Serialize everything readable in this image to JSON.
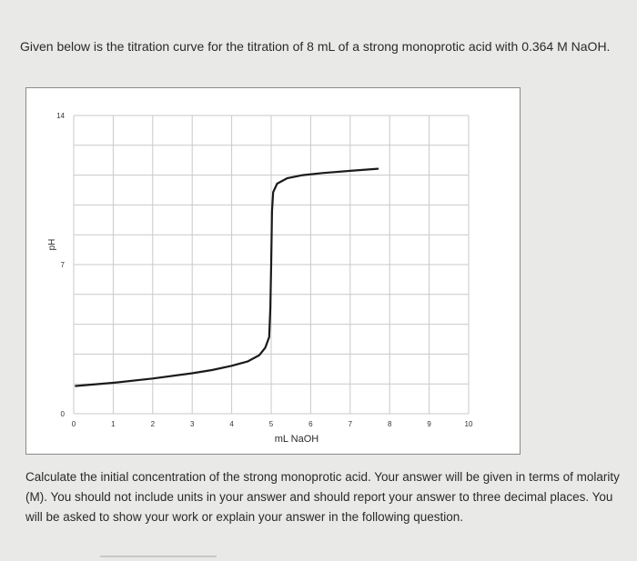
{
  "question": {
    "intro": "Given below is the titration curve for the titration of 8 mL of a strong monoprotic acid with 0.364 M NaOH.",
    "prompt": "Calculate the initial concentration of the strong monoprotic acid. Your answer will be given in terms of molarity (M). You should not include units in your answer and should report your answer to three decimal places. You will be asked to show your work or explain your answer in the following question."
  },
  "chart_data": {
    "type": "line",
    "title": "",
    "xlabel": "mL NaOH",
    "ylabel": "pH",
    "xlim": [
      0,
      10
    ],
    "ylim": [
      0,
      14
    ],
    "x_ticks": [
      "0",
      "1",
      "2",
      "3",
      "4",
      "5",
      "6",
      "7",
      "8",
      "9",
      "10"
    ],
    "y_ticks": [
      "0",
      "7",
      "14"
    ],
    "grid": true,
    "line_color": "#1a1a1a",
    "series": [
      {
        "x": [
          0.05,
          1,
          2,
          3,
          3.5,
          4,
          4.4,
          4.7,
          4.85,
          4.95,
          4.98,
          5.0,
          5.02,
          5.05,
          5.15,
          5.4,
          5.8,
          6.3,
          7,
          7.7
        ],
        "values": [
          1.3,
          1.45,
          1.65,
          1.9,
          2.05,
          2.25,
          2.45,
          2.75,
          3.1,
          3.6,
          5.0,
          7.0,
          9.5,
          10.4,
          10.8,
          11.05,
          11.2,
          11.3,
          11.4,
          11.5
        ]
      }
    ]
  }
}
